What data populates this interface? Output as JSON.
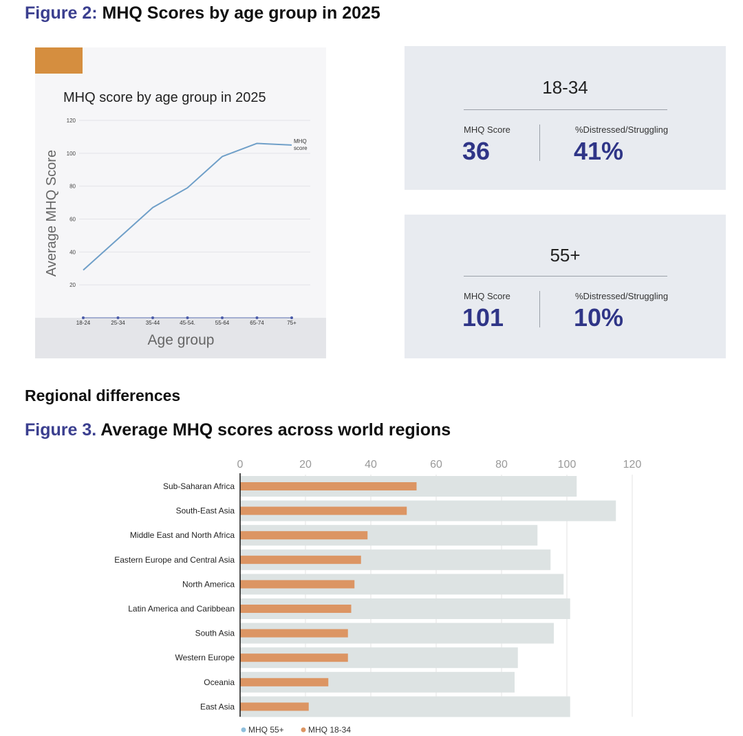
{
  "figure2": {
    "number": "Figure 2:",
    "title": "MHQ Scores by age group in 2025"
  },
  "section_heading": "Regional differences",
  "figure3": {
    "number": "Figure 3.",
    "title": "Average MHQ scores across world regions"
  },
  "stat_cards": [
    {
      "group": "18-34",
      "score_label": "MHQ Score",
      "score": "36",
      "distress_label": "%Distressed/Struggling",
      "distress": "41%"
    },
    {
      "group": "55+",
      "score_label": "MHQ Score",
      "score": "101",
      "distress_label": "%Distressed/Struggling",
      "distress": "10%"
    }
  ],
  "colors": {
    "accent": "#d58e3f",
    "line": "#6f9fc8",
    "stat_value": "#2f3587",
    "bar_55": "#dde3e3",
    "bar_18": "#dc9563",
    "legend_55": "#8fbfdc"
  },
  "chart_data": [
    {
      "type": "line",
      "title": "MHQ score by age group in 2025",
      "xlabel": "Age group",
      "ylabel": "Average MHQ Score",
      "categories": [
        "18-24",
        "25-34",
        "35-44",
        "45-54.",
        "55-64",
        "65-74",
        "75+"
      ],
      "series": [
        {
          "name": "MHQ score",
          "legend_lines": [
            "MHQ",
            "score"
          ],
          "values": [
            29,
            48,
            67,
            79,
            98,
            106,
            105
          ]
        }
      ],
      "ylim": [
        0,
        120
      ],
      "yticks": [
        20,
        40,
        60,
        80,
        100,
        120
      ],
      "grid": true
    },
    {
      "type": "bar",
      "orientation": "horizontal",
      "title": "Average MHQ scores across world regions",
      "categories": [
        "Sub-Saharan Africa",
        "South-East Asia",
        "Middle East and North Africa",
        "Eastern Europe and Central Asia",
        "North America",
        "Latin America and Caribbean",
        "South Asia",
        "Western Europe",
        "Oceania",
        "East Asia"
      ],
      "series": [
        {
          "name": "MHQ 55+",
          "values": [
            103,
            115,
            91,
            95,
            99,
            101,
            96,
            85,
            84,
            101
          ]
        },
        {
          "name": "MHQ 18-34",
          "values": [
            54,
            51,
            39,
            37,
            35,
            34,
            33,
            33,
            27,
            21
          ]
        }
      ],
      "xlim": [
        0,
        120
      ],
      "xticks": [
        0,
        20,
        40,
        60,
        80,
        100,
        120
      ],
      "legend": "bottom-left"
    }
  ]
}
